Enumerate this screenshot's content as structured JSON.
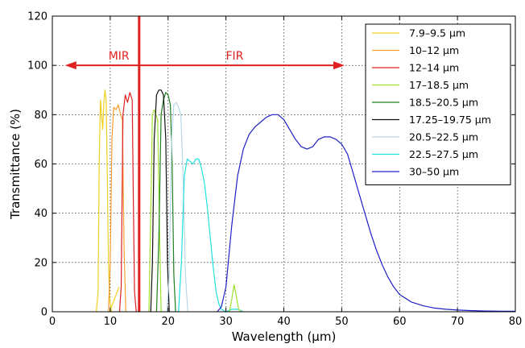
{
  "chart_data": {
    "type": "line",
    "xlabel": "Wavelength (μm)",
    "ylabel": "Transmittance (%)",
    "xlim": [
      0,
      80
    ],
    "ylim": [
      0,
      120
    ],
    "xticks": [
      "0",
      "10",
      "20",
      "30",
      "40",
      "50",
      "60",
      "70",
      "80"
    ],
    "yticks": [
      "0",
      "20",
      "40",
      "60",
      "80",
      "100",
      "120"
    ],
    "grid": true,
    "legend": "top-right",
    "series": [
      {
        "name": "7.9–9.5 μm",
        "color": "#f0d020",
        "x": [
          7.6,
          7.9,
          8.1,
          8.3,
          8.5,
          8.7,
          8.9,
          9.1,
          9.3,
          9.5,
          9.7,
          9.9,
          10.2
        ],
        "y": [
          0,
          8,
          60,
          86,
          80,
          74,
          85,
          90,
          86,
          55,
          20,
          5,
          0
        ]
      },
      {
        "name": "10–12 μm",
        "color": "#f5a030",
        "x": [
          9.7,
          10.0,
          10.3,
          10.6,
          11.0,
          11.4,
          11.8,
          12.1,
          12.4,
          12.7
        ],
        "y": [
          0,
          20,
          70,
          83,
          82,
          84,
          80,
          78,
          25,
          0
        ]
      },
      {
        "name": "12–14 μm",
        "color": "#e02020",
        "x": [
          11.6,
          11.9,
          12.2,
          12.6,
          13.0,
          13.4,
          13.8,
          14.0,
          14.2,
          14.5
        ],
        "y": [
          0,
          10,
          80,
          88,
          85,
          89,
          86,
          45,
          8,
          0
        ]
      },
      {
        "name": "17–18.5 μm",
        "color": "#a0e030",
        "x": [
          16.7,
          17.0,
          17.3,
          17.6,
          17.9,
          18.2,
          18.5,
          18.8
        ],
        "y": [
          0,
          40,
          80,
          82,
          80,
          78,
          35,
          0
        ]
      },
      {
        "name": "18.5–20.5 μm",
        "color": "#208020",
        "x": [
          18.0,
          18.4,
          18.8,
          19.2,
          19.6,
          20.0,
          20.4,
          20.7,
          21.0,
          21.3
        ],
        "y": [
          0,
          30,
          80,
          86,
          89,
          88,
          84,
          60,
          15,
          0
        ]
      },
      {
        "name": "17.25–19.75 μm",
        "color": "#101010",
        "x": [
          17.0,
          17.3,
          17.6,
          18.0,
          18.4,
          18.8,
          19.2,
          19.6,
          19.9,
          20.2
        ],
        "y": [
          0,
          20,
          70,
          88,
          90,
          90,
          88,
          70,
          20,
          0
        ]
      },
      {
        "name": "20.5–22.5 μm",
        "color": "#b8d8e8",
        "x": [
          19.8,
          20.2,
          20.6,
          21.0,
          21.4,
          21.8,
          22.2,
          22.6,
          23.0,
          23.4
        ],
        "y": [
          0,
          15,
          70,
          84,
          85,
          83,
          80,
          55,
          15,
          0
        ]
      },
      {
        "name": "22.5–27.5 μm",
        "color": "#20e0e0",
        "x": [
          21.8,
          22.3,
          22.8,
          23.3,
          23.8,
          24.3,
          24.8,
          25.3,
          25.8,
          26.3,
          26.8,
          27.3,
          27.8,
          28.3,
          28.8,
          29.2,
          30.0,
          31.0,
          32.0,
          33.0
        ],
        "y": [
          0,
          20,
          55,
          62,
          61,
          60,
          62,
          62,
          58,
          52,
          42,
          30,
          18,
          8,
          3,
          1,
          0,
          1,
          1,
          0
        ]
      },
      {
        "name": "30–50 μm",
        "color": "#2020c8",
        "x": [
          28.5,
          29.2,
          30.0,
          31.0,
          32.0,
          33.0,
          34.0,
          35.0,
          36.0,
          37.0,
          38.0,
          39.0,
          40.0,
          41.0,
          42.0,
          43.0,
          44.0,
          45.0,
          46.0,
          47.0,
          48.0,
          49.0,
          50.0,
          51.0,
          52.0,
          53.0,
          54.0,
          55.0,
          56.0,
          57.0,
          58.0,
          59.0,
          60.0,
          62.0,
          64.0,
          66.0,
          68.0,
          70.0,
          72.0,
          75.0,
          78.0,
          80.0
        ],
        "y": [
          0,
          2,
          10,
          35,
          55,
          66,
          72,
          75,
          77,
          79,
          80,
          80,
          78,
          74,
          70,
          67,
          66,
          67,
          70,
          71,
          71,
          70,
          68,
          64,
          56,
          48,
          40,
          32,
          25,
          19,
          14,
          10,
          7,
          4,
          2.5,
          1.5,
          1,
          0.7,
          0.5,
          0.3,
          0.2,
          0.2
        ]
      }
    ],
    "extra_lines": [
      {
        "x": [
          9.9,
          11.5
        ],
        "y": [
          0,
          10
        ],
        "color": "#f0d020"
      },
      {
        "x": [
          11.5,
          12.3
        ],
        "y": [
          0,
          0
        ],
        "color": "#f0d020"
      },
      {
        "x": [
          30.6,
          31.0,
          31.4,
          31.8,
          32.2,
          32.6
        ],
        "y": [
          0,
          5,
          11,
          6,
          1,
          0
        ],
        "color": "#a0e030"
      }
    ],
    "annotations": [
      {
        "text": "MIR",
        "x": 11.5,
        "y": 104,
        "color": "#e02020"
      },
      {
        "text": "FIR",
        "x": 31.5,
        "y": 104,
        "color": "#e02020"
      }
    ],
    "divider_x": 15,
    "arrows": [
      {
        "from_x": 15,
        "to_x": 2.2,
        "y": 100,
        "color": "#e02020"
      },
      {
        "from_x": 15,
        "to_x": 50.5,
        "y": 100,
        "color": "#e02020"
      }
    ]
  }
}
